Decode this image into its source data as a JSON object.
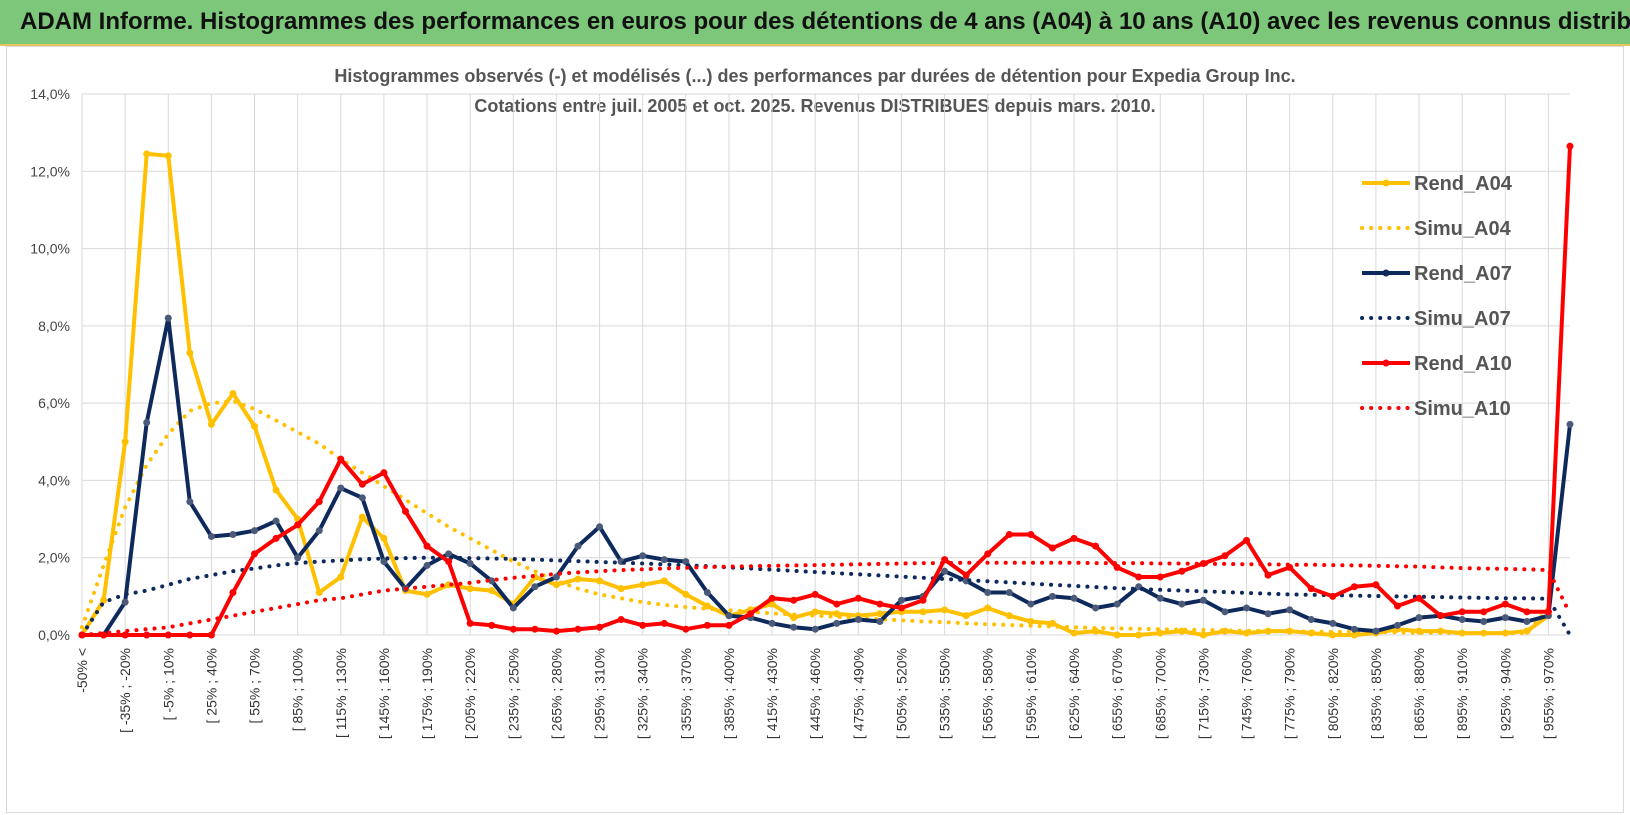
{
  "banner": {
    "title": "ADAM Informe. Histogrammes des performances en euros pour des détentions de 4 ans (A04) à 10 ans (A10) avec les revenus connus distribués"
  },
  "chart_data": {
    "type": "line",
    "title": "Histogrammes observés (-) et modélisés (...) des performances par durées de détention pour Expedia Group Inc.",
    "subtitle": "Cotations entre juil. 2005 et oct. 2025. Revenus DISTRIBUES depuis mars. 2010.",
    "ylim": [
      0,
      14
    ],
    "yticks": [
      0,
      2,
      4,
      6,
      8,
      10,
      12,
      14
    ],
    "ytick_labels": [
      "0,0%",
      "2,0%",
      "4,0%",
      "6,0%",
      "8,0%",
      "10,0%",
      "12,0%",
      "14,0%"
    ],
    "x_tick_labels": [
      "-50% <",
      "[ -35% ; -20%",
      "[ -5% ; 10%",
      "[ 25% ; 40%",
      "[ 55% ; 70%",
      "[ 85% ; 100%",
      "[ 115% ; 130%",
      "[ 145% ; 160%",
      "[ 175% ; 190%",
      "[ 205% ; 220%",
      "[ 235% ; 250%",
      "[ 265% ; 280%",
      "[ 295% ; 310%",
      "[ 325% ; 340%",
      "[ 355% ; 370%",
      "[ 385% ; 400%",
      "[ 415% ; 430%",
      "[ 445% ; 460%",
      "[ 475% ; 490%",
      "[ 505% ; 520%",
      "[ 535% ; 550%",
      "[ 565% ; 580%",
      "[ 595% ; 610%",
      "[ 625% ; 640%",
      "[ 655% ; 670%",
      "[ 685% ; 700%",
      "[ 715% ; 730%",
      "[ 745% ; 760%",
      "[ 775% ; 790%",
      "[ 805% ; 820%",
      "[ 835% ; 850%",
      "[ 865% ; 880%",
      "[ 895% ; 910%",
      "[ 925% ; 940%",
      "[ 955% ; 970%"
    ],
    "n_points": 70,
    "legend_position": "right",
    "series": [
      {
        "name": "Rend_A04",
        "style": "solid",
        "color": "#ffc000",
        "values": [
          0.0,
          0.9,
          5.0,
          12.45,
          12.4,
          7.3,
          5.45,
          6.25,
          5.4,
          3.75,
          3.0,
          1.1,
          1.5,
          3.05,
          2.5,
          1.15,
          1.05,
          1.3,
          1.2,
          1.15,
          0.8,
          1.5,
          1.3,
          1.45,
          1.4,
          1.2,
          1.3,
          1.4,
          1.05,
          0.75,
          0.5,
          0.65,
          0.8,
          0.45,
          0.6,
          0.55,
          0.5,
          0.55,
          0.6,
          0.6,
          0.65,
          0.5,
          0.7,
          0.5,
          0.35,
          0.3,
          0.05,
          0.1,
          0.0,
          0.0,
          0.05,
          0.1,
          0.0,
          0.1,
          0.05,
          0.1,
          0.1,
          0.05,
          0.0,
          0.0,
          0.05,
          0.15,
          0.1,
          0.1,
          0.05,
          0.05,
          0.05,
          0.1,
          0.5
        ]
      },
      {
        "name": "Simu_A04",
        "style": "dotted",
        "color": "#ffc000",
        "values": [
          0.2,
          1.8,
          3.3,
          4.4,
          5.2,
          5.8,
          6.0,
          6.05,
          5.85,
          5.55,
          5.25,
          4.95,
          4.55,
          4.2,
          3.85,
          3.5,
          3.15,
          2.8,
          2.5,
          2.2,
          1.9,
          1.65,
          1.4,
          1.2,
          1.05,
          0.95,
          0.85,
          0.78,
          0.72,
          0.68,
          0.64,
          0.6,
          0.56,
          0.53,
          0.5,
          0.47,
          0.44,
          0.41,
          0.38,
          0.35,
          0.33,
          0.3,
          0.28,
          0.26,
          0.24,
          0.22,
          0.2,
          0.18,
          0.17,
          0.16,
          0.15,
          0.14,
          0.13,
          0.12,
          0.11,
          0.1,
          0.09,
          0.09,
          0.08,
          0.08,
          0.07,
          0.07,
          0.06,
          0.06,
          0.05,
          0.05,
          0.05,
          0.05,
          0.7
        ]
      },
      {
        "name": "Rend_A07",
        "style": "solid",
        "color": "#0e2a5c",
        "values": [
          0.0,
          0.0,
          0.85,
          5.5,
          8.2,
          3.45,
          2.55,
          2.6,
          2.7,
          2.95,
          2.0,
          2.7,
          3.8,
          3.55,
          1.9,
          1.2,
          1.8,
          2.1,
          1.85,
          1.4,
          0.7,
          1.25,
          1.5,
          2.3,
          2.8,
          1.9,
          2.05,
          1.95,
          1.9,
          1.1,
          0.5,
          0.45,
          0.3,
          0.2,
          0.15,
          0.3,
          0.4,
          0.35,
          0.9,
          1.0,
          1.65,
          1.4,
          1.1,
          1.1,
          0.8,
          1.0,
          0.95,
          0.7,
          0.8,
          1.25,
          0.95,
          0.8,
          0.9,
          0.6,
          0.7,
          0.55,
          0.65,
          0.4,
          0.3,
          0.15,
          0.1,
          0.25,
          0.45,
          0.5,
          0.4,
          0.35,
          0.45,
          0.35,
          0.5,
          5.45
        ]
      },
      {
        "name": "Simu_A07",
        "style": "dotted",
        "color": "#0e2a5c",
        "values": [
          0.0,
          0.85,
          1.05,
          1.15,
          1.3,
          1.45,
          1.55,
          1.65,
          1.72,
          1.8,
          1.86,
          1.9,
          1.93,
          1.96,
          1.98,
          1.99,
          2.0,
          2.0,
          1.99,
          1.98,
          1.97,
          1.95,
          1.93,
          1.91,
          1.89,
          1.87,
          1.85,
          1.83,
          1.8,
          1.78,
          1.75,
          1.72,
          1.69,
          1.66,
          1.63,
          1.6,
          1.57,
          1.54,
          1.51,
          1.48,
          1.45,
          1.42,
          1.39,
          1.36,
          1.33,
          1.3,
          1.27,
          1.24,
          1.21,
          1.19,
          1.17,
          1.15,
          1.13,
          1.11,
          1.09,
          1.07,
          1.05,
          1.04,
          1.03,
          1.02,
          1.01,
          1.0,
          0.99,
          0.98,
          0.97,
          0.96,
          0.95,
          0.95,
          0.94,
          0.0
        ]
      },
      {
        "name": "Rend_A10",
        "style": "solid",
        "color": "#ff0000",
        "values": [
          0.0,
          0.0,
          0.0,
          0.0,
          0.0,
          0.0,
          0.0,
          1.1,
          2.1,
          2.5,
          2.85,
          3.45,
          4.55,
          3.9,
          4.2,
          3.2,
          2.3,
          1.9,
          0.3,
          0.25,
          0.15,
          0.15,
          0.1,
          0.15,
          0.2,
          0.4,
          0.25,
          0.3,
          0.15,
          0.25,
          0.25,
          0.55,
          0.95,
          0.9,
          1.05,
          0.8,
          0.95,
          0.8,
          0.7,
          0.9,
          1.95,
          1.55,
          2.1,
          2.6,
          2.6,
          2.25,
          2.5,
          2.3,
          1.75,
          1.5,
          1.5,
          1.65,
          1.85,
          2.05,
          2.45,
          1.55,
          1.75,
          1.2,
          1.0,
          1.25,
          1.3,
          0.75,
          0.95,
          0.5,
          0.6,
          0.6,
          0.8,
          0.6,
          0.6,
          12.65
        ]
      },
      {
        "name": "Simu_A10",
        "style": "dotted",
        "color": "#ff0000",
        "values": [
          0.0,
          0.05,
          0.1,
          0.15,
          0.2,
          0.3,
          0.4,
          0.5,
          0.6,
          0.7,
          0.8,
          0.9,
          0.95,
          1.05,
          1.15,
          1.2,
          1.25,
          1.3,
          1.35,
          1.42,
          1.48,
          1.53,
          1.58,
          1.62,
          1.65,
          1.68,
          1.7,
          1.72,
          1.74,
          1.76,
          1.77,
          1.78,
          1.79,
          1.8,
          1.81,
          1.82,
          1.83,
          1.84,
          1.85,
          1.86,
          1.86,
          1.87,
          1.87,
          1.87,
          1.87,
          1.87,
          1.87,
          1.86,
          1.86,
          1.86,
          1.85,
          1.85,
          1.84,
          1.84,
          1.83,
          1.83,
          1.82,
          1.82,
          1.81,
          1.8,
          1.79,
          1.78,
          1.77,
          1.75,
          1.73,
          1.72,
          1.71,
          1.7,
          1.68,
          0.55
        ]
      }
    ]
  }
}
